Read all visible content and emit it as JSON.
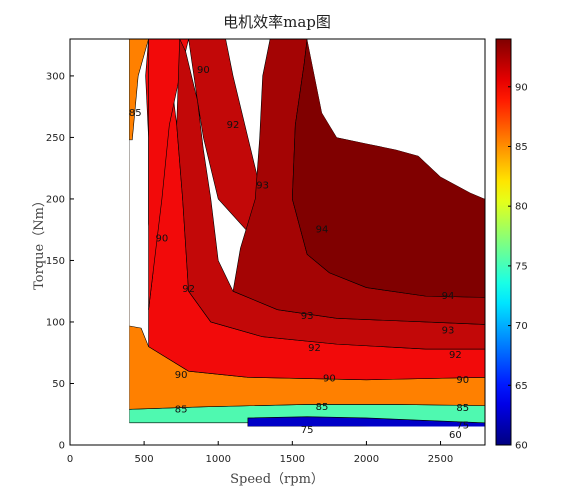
{
  "chart_data": {
    "type": "contour",
    "title": "电机效率map图",
    "xlabel": "Speed（rpm）",
    "ylabel": "Torque（Nm）",
    "xlim": [
      0,
      2800
    ],
    "ylim": [
      0,
      330
    ],
    "xticks": [
      "0",
      "500",
      "1000",
      "1500",
      "2000",
      "2500"
    ],
    "yticks": [
      "0",
      "50",
      "100",
      "150",
      "200",
      "250",
      "300"
    ],
    "colorbar": {
      "range": [
        60,
        94
      ],
      "ticks": [
        "60",
        "65",
        "70",
        "75",
        "80",
        "85",
        "90"
      ]
    },
    "levels": [
      {
        "value": 60,
        "color": "#00007f",
        "polygon": [
          [
            1200,
            15
          ],
          [
            1700,
            15
          ],
          [
            1950,
            15
          ],
          [
            2350,
            14
          ],
          [
            2800,
            14
          ],
          [
            2800,
            8
          ],
          [
            2300,
            9
          ],
          [
            1800,
            10
          ],
          [
            1500,
            12
          ],
          [
            1200,
            15
          ]
        ]
      },
      {
        "value": 75,
        "color": "#0000c8",
        "polygon": [
          [
            1200,
            15
          ],
          [
            1700,
            15
          ],
          [
            1950,
            15
          ],
          [
            2350,
            14
          ],
          [
            2800,
            14
          ],
          [
            2800,
            18
          ],
          [
            2400,
            20
          ],
          [
            2000,
            22
          ],
          [
            1600,
            23
          ],
          [
            1200,
            22
          ],
          [
            1200,
            15
          ]
        ]
      },
      {
        "value": 80,
        "color": "#4ff9b0",
        "polygon": [
          [
            400,
            18
          ],
          [
            1200,
            18
          ],
          [
            1200,
            22
          ],
          [
            1600,
            23
          ],
          [
            2000,
            22
          ],
          [
            2400,
            20
          ],
          [
            2800,
            18
          ],
          [
            2800,
            32
          ],
          [
            2200,
            33
          ],
          [
            1600,
            33
          ],
          [
            900,
            31
          ],
          [
            400,
            29
          ],
          [
            400,
            18
          ]
        ]
      },
      {
        "value": 85,
        "color": "#ff8000",
        "polygon": [
          [
            400,
            29
          ],
          [
            900,
            31
          ],
          [
            1600,
            33
          ],
          [
            2200,
            33
          ],
          [
            2800,
            32
          ],
          [
            2800,
            55
          ],
          [
            2000,
            53
          ],
          [
            1200,
            55
          ],
          [
            800,
            60
          ],
          [
            530,
            80
          ],
          [
            480,
            95
          ],
          [
            390,
            97
          ],
          [
            400,
            248
          ],
          [
            400,
            330
          ],
          [
            1000,
            330
          ],
          [
            1000,
            330
          ],
          [
            400,
            330
          ]
        ]
      },
      {
        "value": 85,
        "color": "#52f7a5",
        "polygon": [
          [
            400,
            248
          ],
          [
            430,
            265
          ],
          [
            450,
            310
          ],
          [
            510,
            330
          ],
          [
            400,
            330
          ]
        ]
      },
      {
        "value": 85,
        "color": "#ff8000",
        "polygon": [
          [
            400,
            248
          ],
          [
            420,
            248
          ],
          [
            460,
            300
          ],
          [
            530,
            330
          ],
          [
            400,
            330
          ]
        ]
      },
      {
        "value": 90,
        "color": "#f20a0a",
        "polygon": [
          [
            530,
            80
          ],
          [
            800,
            60
          ],
          [
            1200,
            55
          ],
          [
            2000,
            53
          ],
          [
            2800,
            55
          ],
          [
            2800,
            78
          ],
          [
            2400,
            78
          ],
          [
            1800,
            82
          ],
          [
            1300,
            88
          ],
          [
            950,
            100
          ],
          [
            800,
            125
          ],
          [
            760,
            200
          ],
          [
            720,
            260
          ],
          [
            670,
            310
          ],
          [
            560,
            330
          ],
          [
            530,
            330
          ],
          [
            510,
            300
          ],
          [
            530,
            250
          ],
          [
            530,
            180
          ],
          [
            560,
            140
          ],
          [
            530,
            110
          ],
          [
            530,
            80
          ]
        ]
      },
      {
        "value": 90,
        "color": "#f20a0a",
        "polygon": [
          [
            530,
            330
          ],
          [
            800,
            330
          ],
          [
            740,
            300
          ],
          [
            670,
            260
          ],
          [
            620,
            200
          ],
          [
            580,
            160
          ],
          [
            530,
            110
          ],
          [
            530,
            330
          ]
        ]
      },
      {
        "value": 92,
        "color": "#c20808",
        "polygon": [
          [
            800,
            125
          ],
          [
            950,
            100
          ],
          [
            1300,
            88
          ],
          [
            1800,
            82
          ],
          [
            2400,
            78
          ],
          [
            2800,
            78
          ],
          [
            2800,
            98
          ],
          [
            2400,
            100
          ],
          [
            1800,
            103
          ],
          [
            1400,
            110
          ],
          [
            1100,
            125
          ],
          [
            1000,
            150
          ],
          [
            950,
            200
          ],
          [
            900,
            240
          ],
          [
            860,
            280
          ],
          [
            780,
            320
          ],
          [
            740,
            330
          ],
          [
            1050,
            330
          ],
          [
            1100,
            300
          ],
          [
            1200,
            250
          ],
          [
            1300,
            200
          ],
          [
            1350,
            170
          ],
          [
            1300,
            160
          ],
          [
            1000,
            200
          ],
          [
            900,
            250
          ],
          [
            860,
            280
          ],
          [
            800,
            330
          ],
          [
            740,
            330
          ],
          [
            720,
            260
          ],
          [
            760,
            200
          ],
          [
            800,
            125
          ]
        ]
      },
      {
        "value": 93,
        "color": "#a40404",
        "polygon": [
          [
            1100,
            125
          ],
          [
            1400,
            110
          ],
          [
            1800,
            103
          ],
          [
            2400,
            100
          ],
          [
            2800,
            98
          ],
          [
            2800,
            120
          ],
          [
            2400,
            121
          ],
          [
            2000,
            128
          ],
          [
            1750,
            140
          ],
          [
            1600,
            155
          ],
          [
            1500,
            200
          ],
          [
            1520,
            260
          ],
          [
            1580,
            310
          ],
          [
            1600,
            330
          ],
          [
            1350,
            330
          ],
          [
            1300,
            300
          ],
          [
            1280,
            250
          ],
          [
            1250,
            200
          ],
          [
            1150,
            160
          ],
          [
            1100,
            125
          ]
        ]
      },
      {
        "value": 94,
        "color": "#800000",
        "polygon": [
          [
            1600,
            155
          ],
          [
            1750,
            140
          ],
          [
            2000,
            128
          ],
          [
            2400,
            121
          ],
          [
            2800,
            120
          ],
          [
            2800,
            200
          ],
          [
            2700,
            205
          ],
          [
            2500,
            218
          ],
          [
            2350,
            235
          ],
          [
            2200,
            240
          ],
          [
            2000,
            245
          ],
          [
            1800,
            250
          ],
          [
            1700,
            270
          ],
          [
            1600,
            330
          ],
          [
            1580,
            310
          ],
          [
            1520,
            260
          ],
          [
            1500,
            200
          ],
          [
            1600,
            155
          ]
        ]
      }
    ],
    "region": [
      [
        400,
        15
      ],
      [
        2800,
        15
      ],
      [
        2800,
        200
      ],
      [
        2700,
        205
      ],
      [
        2500,
        218
      ],
      [
        2350,
        235
      ],
      [
        2200,
        240
      ],
      [
        2000,
        245
      ],
      [
        1800,
        250
      ],
      [
        1700,
        270
      ],
      [
        1600,
        330
      ],
      [
        400,
        330
      ]
    ],
    "contour_labels": [
      {
        "text": "60",
        "x": 2600,
        "y": 8
      },
      {
        "text": "75",
        "x": 1600,
        "y": 12
      },
      {
        "text": "75",
        "x": 2650,
        "y": 16
      },
      {
        "text": "85",
        "x": 750,
        "y": 29
      },
      {
        "text": "85",
        "x": 1700,
        "y": 31
      },
      {
        "text": "85",
        "x": 2650,
        "y": 30
      },
      {
        "text": "90",
        "x": 750,
        "y": 57
      },
      {
        "text": "90",
        "x": 1750,
        "y": 54
      },
      {
        "text": "90",
        "x": 2650,
        "y": 53
      },
      {
        "text": "92",
        "x": 1650,
        "y": 79
      },
      {
        "text": "92",
        "x": 2600,
        "y": 73
      },
      {
        "text": "93",
        "x": 1600,
        "y": 105
      },
      {
        "text": "93",
        "x": 2550,
        "y": 93
      },
      {
        "text": "94",
        "x": 2550,
        "y": 121
      },
      {
        "text": "94",
        "x": 1700,
        "y": 175
      },
      {
        "text": "93",
        "x": 1300,
        "y": 211
      },
      {
        "text": "92",
        "x": 1100,
        "y": 260
      },
      {
        "text": "90",
        "x": 900,
        "y": 305
      },
      {
        "text": "90",
        "x": 620,
        "y": 168
      },
      {
        "text": "85",
        "x": 440,
        "y": 270
      },
      {
        "text": "92",
        "x": 800,
        "y": 127
      }
    ]
  }
}
